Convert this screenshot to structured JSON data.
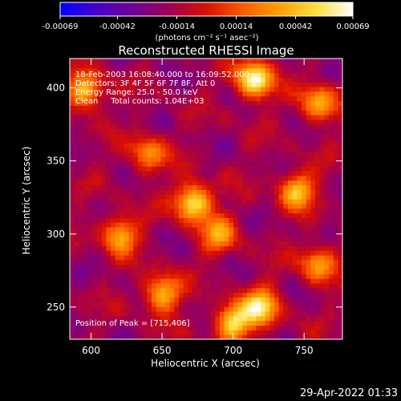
{
  "chart_data": {
    "type": "heatmap",
    "title": "Reconstructed RHESSI Image",
    "xlabel": "Heliocentric X (arcsec)",
    "ylabel": "Heliocentric Y (arcsec)",
    "xlim": [
      585,
      777
    ],
    "ylim": [
      228,
      420
    ],
    "xticks": [
      600,
      650,
      700,
      750
    ],
    "yticks": [
      250,
      300,
      350,
      400
    ],
    "colorbar": {
      "range": [
        -0.00069,
        0.00069
      ],
      "ticks": [
        "-0.00069",
        "-0.00042",
        "-0.00014",
        "0.00014",
        "0.00042",
        "0.00069"
      ],
      "label": "(photons cm⁻² s⁻¹ asec⁻²)",
      "colormap": [
        "#0000ff",
        "#4400c8",
        "#700094",
        "#a00050",
        "#d81000",
        "#ff5a00",
        "#ffa000",
        "#ffde40",
        "#ffffff"
      ]
    },
    "annotations": [
      "18-Feb-2003 16:08:40.000 to 16:09:52.000",
      "Detectors: 3F 4F 5F 6F 7F 8F, Att 0",
      "Energy Range: 25.0 - 50.0 keV",
      "Clean     Total counts: 1.04E+03"
    ],
    "peak_label": "Position of Peak = [715,406]",
    "peak": [
      715,
      406
    ],
    "sources": [
      {
        "x": 715,
        "y": 406,
        "value": 0.00069
      },
      {
        "x": 672,
        "y": 322,
        "value": 0.00062
      },
      {
        "x": 700,
        "y": 240,
        "value": 0.00055
      },
      {
        "x": 720,
        "y": 250,
        "value": 0.00052
      },
      {
        "x": 596,
        "y": 398,
        "value": 0.00045
      },
      {
        "x": 620,
        "y": 300,
        "value": 0.0004
      },
      {
        "x": 745,
        "y": 330,
        "value": 0.00042
      },
      {
        "x": 760,
        "y": 280,
        "value": 0.00035
      },
      {
        "x": 650,
        "y": 260,
        "value": 0.00045
      },
      {
        "x": 690,
        "y": 300,
        "value": 0.0003
      },
      {
        "x": 760,
        "y": 390,
        "value": 0.0004
      },
      {
        "x": 640,
        "y": 355,
        "value": 0.0003
      }
    ]
  },
  "timestamp": "29-Apr-2022 01:33"
}
